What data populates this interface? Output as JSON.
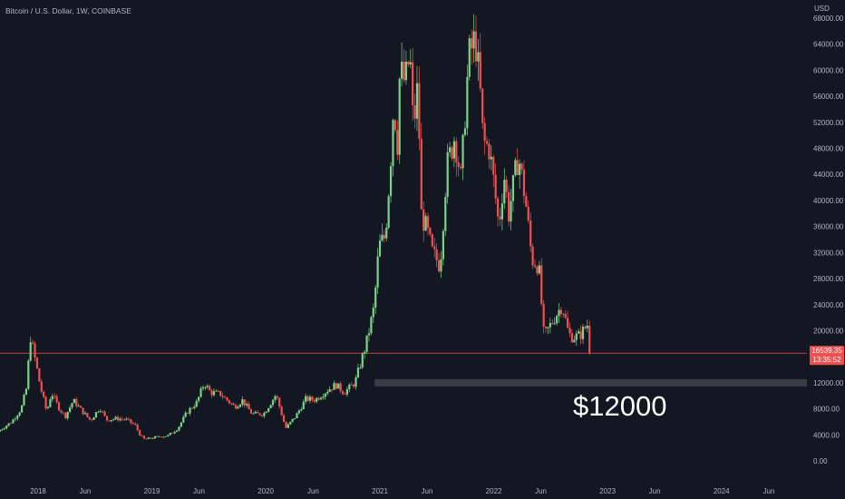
{
  "header": {
    "symbol_title": "Bitcoin / U.S. Dollar, 1W, COINBASE"
  },
  "price_scale": {
    "currency": "USD"
  },
  "current_price": {
    "value": 16539.35,
    "label": "16539.35",
    "countdown": "13:35:52"
  },
  "annotation": {
    "label": "$12000",
    "zone_price": 12000
  },
  "colors": {
    "background": "#131722",
    "up": "#26a69a",
    "up_candle": "#7bd389",
    "down": "#f05050",
    "axis_text": "#b2b5be",
    "zone": "#3a3d45",
    "price_line": "#f05050"
  },
  "chart_data": {
    "type": "candlestick",
    "title": "Bitcoin / U.S. Dollar, 1W, COINBASE",
    "interval": "1W",
    "ylabel": "USD",
    "ylim": [
      0,
      68000
    ],
    "y_ticks": [
      0,
      4000,
      8000,
      12000,
      16000,
      20000,
      24000,
      28000,
      32000,
      36000,
      40000,
      44000,
      48000,
      52000,
      56000,
      60000,
      64000,
      68000
    ],
    "y_tick_labels": [
      "0.00",
      "4000.00",
      "8000.00",
      "12000.00",
      "",
      "20000.00",
      "24000.00",
      "28000.00",
      "32000.00",
      "36000.00",
      "40000.00",
      "44000.00",
      "48000.00",
      "52000.00",
      "56000.00",
      "60000.00",
      "64000.00",
      "68000.00"
    ],
    "x_tick_labels": [
      "2018",
      "Jun",
      "2019",
      "Jun",
      "2020",
      "Jun",
      "2021",
      "Jun",
      "2022",
      "Jun",
      "2023",
      "Jun",
      "2024",
      "Jun"
    ],
    "x_tick_dates": [
      "2018-01-01",
      "2018-06-01",
      "2019-01-01",
      "2019-06-01",
      "2020-01-01",
      "2020-06-01",
      "2021-01-01",
      "2021-06-01",
      "2022-01-01",
      "2022-06-01",
      "2023-01-01",
      "2023-06-01",
      "2024-01-01",
      "2024-06-01"
    ],
    "x_range": [
      "2017-09-01",
      "2024-10-01"
    ],
    "last_close": 16539.35,
    "horizontal_zone": {
      "price": 12000,
      "start": "2020-12-15",
      "end": "2024-10-01",
      "label": "$12000"
    },
    "grid": false,
    "price_path_weekly_closes": [
      [
        "2017-09-01",
        4500
      ],
      [
        "2017-10-15",
        6000
      ],
      [
        "2017-11-15",
        8000
      ],
      [
        "2017-12-01",
        11000
      ],
      [
        "2017-12-15",
        19000
      ],
      [
        "2018-01-01",
        15000
      ],
      [
        "2018-01-15",
        11500
      ],
      [
        "2018-02-05",
        7500
      ],
      [
        "2018-02-20",
        10500
      ],
      [
        "2018-03-15",
        8200
      ],
      [
        "2018-04-05",
        6800
      ],
      [
        "2018-05-01",
        9300
      ],
      [
        "2018-06-01",
        7500
      ],
      [
        "2018-06-25",
        6200
      ],
      [
        "2018-07-25",
        8200
      ],
      [
        "2018-08-15",
        6300
      ],
      [
        "2018-09-15",
        6500
      ],
      [
        "2018-10-15",
        6400
      ],
      [
        "2018-11-15",
        5500
      ],
      [
        "2018-12-01",
        4000
      ],
      [
        "2018-12-15",
        3300
      ],
      [
        "2019-01-15",
        3600
      ],
      [
        "2019-03-01",
        3900
      ],
      [
        "2019-04-01",
        5000
      ],
      [
        "2019-05-01",
        7500
      ],
      [
        "2019-06-01",
        9000
      ],
      [
        "2019-06-25",
        12000
      ],
      [
        "2019-07-15",
        10500
      ],
      [
        "2019-08-15",
        10300
      ],
      [
        "2019-09-30",
        8300
      ],
      [
        "2019-10-25",
        9300
      ],
      [
        "2019-11-25",
        7200
      ],
      [
        "2020-01-01",
        7200
      ],
      [
        "2020-02-10",
        10200
      ],
      [
        "2020-03-12",
        5000
      ],
      [
        "2020-04-15",
        7000
      ],
      [
        "2020-05-15",
        9500
      ],
      [
        "2020-06-15",
        9400
      ],
      [
        "2020-07-27",
        11000
      ],
      [
        "2020-08-20",
        11700
      ],
      [
        "2020-09-15",
        10500
      ],
      [
        "2020-10-20",
        12000
      ],
      [
        "2020-11-10",
        15500
      ],
      [
        "2020-11-25",
        18000
      ],
      [
        "2020-12-20",
        23500
      ],
      [
        "2021-01-05",
        33000
      ],
      [
        "2021-01-25",
        34500
      ],
      [
        "2021-02-10",
        45000
      ],
      [
        "2021-02-21",
        55000
      ],
      [
        "2021-03-05",
        49000
      ],
      [
        "2021-03-13",
        60000
      ],
      [
        "2021-03-30",
        58000
      ],
      [
        "2021-04-14",
        62500
      ],
      [
        "2021-04-25",
        51000
      ],
      [
        "2021-05-10",
        58000
      ],
      [
        "2021-05-20",
        38000
      ],
      [
        "2021-06-10",
        35000
      ],
      [
        "2021-06-25",
        32000
      ],
      [
        "2021-07-20",
        30000
      ],
      [
        "2021-08-10",
        45000
      ],
      [
        "2021-09-05",
        50000
      ],
      [
        "2021-09-25",
        43000
      ],
      [
        "2021-10-10",
        55000
      ],
      [
        "2021-10-20",
        62000
      ],
      [
        "2021-11-10",
        65000
      ],
      [
        "2021-11-25",
        57000
      ],
      [
        "2021-12-05",
        49000
      ],
      [
        "2021-12-25",
        48000
      ],
      [
        "2022-01-10",
        42000
      ],
      [
        "2022-01-24",
        36000
      ],
      [
        "2022-02-10",
        44000
      ],
      [
        "2022-02-25",
        38000
      ],
      [
        "2022-03-28",
        47000
      ],
      [
        "2022-04-20",
        40000
      ],
      [
        "2022-05-10",
        31000
      ],
      [
        "2022-06-01",
        30000
      ],
      [
        "2022-06-18",
        19000
      ],
      [
        "2022-07-10",
        21000
      ],
      [
        "2022-08-15",
        24000
      ],
      [
        "2022-09-05",
        19500
      ],
      [
        "2022-09-20",
        19000
      ],
      [
        "2022-10-10",
        19200
      ],
      [
        "2022-11-05",
        21000
      ],
      [
        "2022-11-10",
        16539
      ]
    ]
  }
}
